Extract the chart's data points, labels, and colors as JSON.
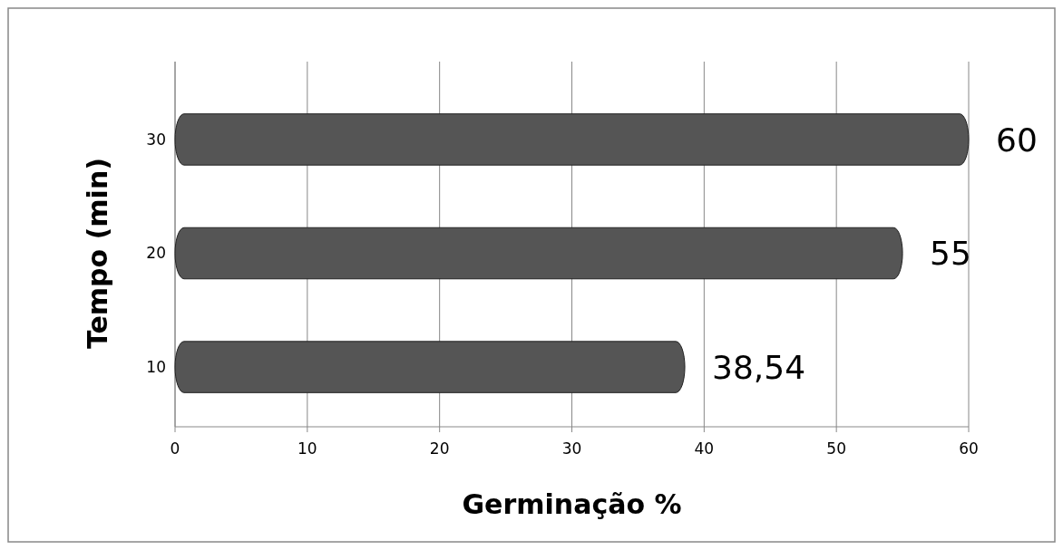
{
  "chart_data": {
    "type": "bar",
    "orientation": "horizontal",
    "xlabel": "Germinação %",
    "ylabel": "Tempo (min)",
    "categories": [
      "30",
      "20",
      "10"
    ],
    "values": [
      60,
      55,
      38.54
    ],
    "value_labels": [
      "60",
      "55",
      "38,54"
    ],
    "color": "#555555",
    "xlim": [
      0,
      60
    ],
    "xticks": [
      0,
      10,
      20,
      30,
      40,
      50,
      60
    ],
    "grid": "x"
  }
}
